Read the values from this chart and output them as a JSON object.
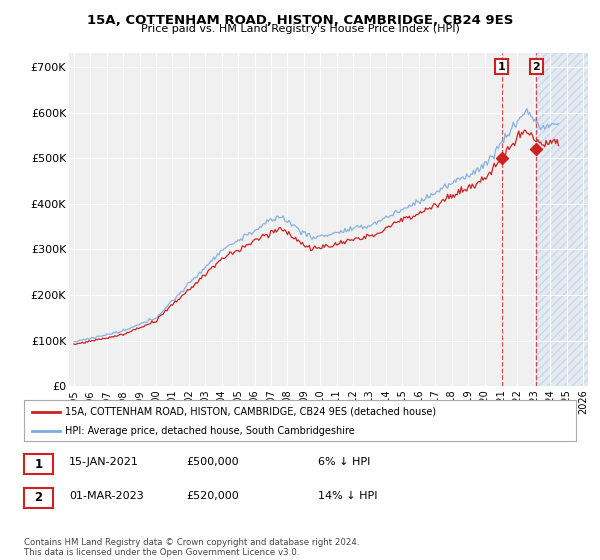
{
  "title": "15A, COTTENHAM ROAD, HISTON, CAMBRIDGE, CB24 9ES",
  "subtitle": "Price paid vs. HM Land Registry's House Price Index (HPI)",
  "xlim_start": 1994.7,
  "xlim_end": 2026.3,
  "ylim": [
    0,
    730000
  ],
  "yticks": [
    0,
    100000,
    200000,
    300000,
    400000,
    500000,
    600000,
    700000
  ],
  "ytick_labels": [
    "£0",
    "£100K",
    "£200K",
    "£300K",
    "£400K",
    "£500K",
    "£600K",
    "£700K"
  ],
  "hpi_color": "#7aace0",
  "price_color": "#cc2222",
  "marker1_x": 2021.04,
  "marker1_y": 500000,
  "marker2_x": 2023.16,
  "marker2_y": 520000,
  "marker1_date": "15-JAN-2021",
  "marker1_price": "£500,000",
  "marker1_hpi_text": "6% ↓ HPI",
  "marker2_date": "01-MAR-2023",
  "marker2_price": "£520,000",
  "marker2_hpi_text": "14% ↓ HPI",
  "legend_line1": "15A, COTTENHAM ROAD, HISTON, CAMBRIDGE, CB24 9ES (detached house)",
  "legend_line2": "HPI: Average price, detached house, South Cambridgeshire",
  "footer": "Contains HM Land Registry data © Crown copyright and database right 2024.\nThis data is licensed under the Open Government Licence v3.0.",
  "bg_color": "#f0f0f0",
  "shade_start": 2023.16,
  "shade_end": 2026.3,
  "hatch_start": 2023.16
}
